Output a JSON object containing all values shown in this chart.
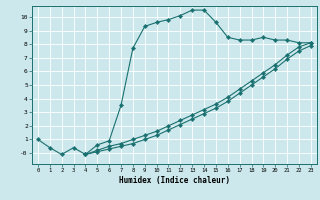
{
  "xlabel": "Humidex (Indice chaleur)",
  "bg_color": "#cce8ec",
  "line_color": "#1a7070",
  "grid_color": "#ffffff",
  "xlim": [
    -0.5,
    23.5
  ],
  "ylim": [
    -0.8,
    10.8
  ],
  "xticks": [
    0,
    1,
    2,
    3,
    4,
    5,
    6,
    7,
    8,
    9,
    10,
    11,
    12,
    13,
    14,
    15,
    16,
    17,
    18,
    19,
    20,
    21,
    22,
    23
  ],
  "yticks": [
    0,
    1,
    2,
    3,
    4,
    5,
    6,
    7,
    8,
    9,
    10
  ],
  "line1_x": [
    0,
    1,
    2,
    3,
    4,
    5,
    6,
    7,
    8,
    9,
    10,
    11,
    12,
    13,
    14,
    15,
    16,
    17,
    18,
    19,
    20,
    21,
    22,
    23
  ],
  "line1_y": [
    1,
    0.4,
    -0.1,
    0.4,
    -0.1,
    0.6,
    0.9,
    3.5,
    7.7,
    9.3,
    9.6,
    9.8,
    10.1,
    10.5,
    10.5,
    9.6,
    8.5,
    8.3,
    8.3,
    8.5,
    8.3,
    8.3,
    8.1,
    8.1
  ],
  "line2_x": [
    4,
    5,
    6,
    7,
    8,
    9,
    10,
    11,
    12,
    13,
    14,
    15,
    16,
    17,
    18,
    19,
    20,
    21,
    22,
    23
  ],
  "line2_y": [
    -0.1,
    0.2,
    0.5,
    0.7,
    1.0,
    1.3,
    1.6,
    2.0,
    2.4,
    2.8,
    3.2,
    3.6,
    4.1,
    4.7,
    5.3,
    5.9,
    6.5,
    7.2,
    7.8,
    8.1
  ],
  "line3_x": [
    4,
    5,
    6,
    7,
    8,
    9,
    10,
    11,
    12,
    13,
    14,
    15,
    16,
    17,
    18,
    19,
    20,
    21,
    22,
    23
  ],
  "line3_y": [
    -0.1,
    0.1,
    0.3,
    0.5,
    0.7,
    1.0,
    1.3,
    1.7,
    2.1,
    2.5,
    2.9,
    3.3,
    3.8,
    4.4,
    5.0,
    5.6,
    6.2,
    6.9,
    7.5,
    7.9
  ]
}
